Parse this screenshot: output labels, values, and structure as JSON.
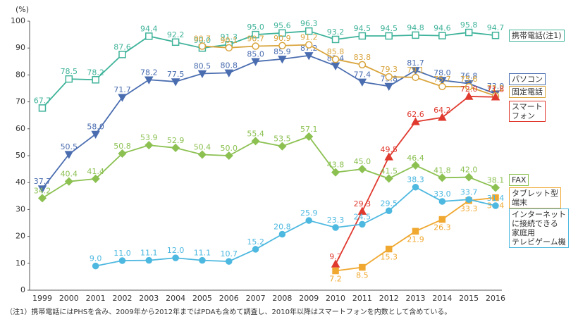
{
  "chart_data": {
    "type": "line",
    "y_label": "(%)",
    "note": "（注1）携帯電話にはPHSを含み、2009年から2012年まではPDAも含めて調査し、2010年以降はスマートフォンを内数として含めている。",
    "categories": [
      "1999",
      "2000",
      "2001",
      "2002",
      "2003",
      "2004",
      "2005",
      "2006",
      "2007",
      "2008",
      "2009",
      "2010",
      "2011",
      "2012",
      "2013",
      "2014",
      "2015",
      "2016"
    ],
    "ylim": [
      0,
      100
    ],
    "yticks": [
      0,
      10,
      20,
      30,
      40,
      50,
      60,
      70,
      80,
      90,
      100
    ],
    "grid": false,
    "series": [
      {
        "name": "携帯電話(注1)",
        "color": "#3fb39a",
        "values": [
          67.7,
          78.5,
          78.2,
          87.6,
          94.4,
          92.2,
          90.0,
          91.3,
          95.0,
          95.6,
          96.3,
          93.2,
          94.5,
          94.5,
          94.8,
          94.6,
          95.8,
          94.7
        ],
        "value_labels": [
          "67.7",
          "78.5",
          "78.2",
          "87.6",
          "94.4",
          "92.2",
          "90.0",
          "91.3",
          "95.0",
          "95.6",
          "96.3",
          "93.2",
          "94.5",
          "94.5",
          "94.8",
          "94.6",
          "95.8",
          "94.7"
        ]
      },
      {
        "name": "パソコン",
        "color": "#4a6db0",
        "values": [
          37.7,
          50.5,
          58.0,
          71.7,
          78.2,
          77.5,
          80.5,
          80.8,
          85.0,
          85.9,
          87.2,
          83.4,
          77.4,
          75.8,
          81.7,
          78.0,
          76.8,
          73.0
        ],
        "value_labels": [
          "37.7",
          "50.5",
          "58.0",
          "71.7",
          "78.2",
          "77.5",
          "80.5",
          "80.8",
          "85.0",
          "85.9",
          "87.2",
          "83.4",
          "77.4",
          "75.8",
          "81.7",
          "78.0",
          "76.8",
          "73.0"
        ]
      },
      {
        "name": "固定電話",
        "color": "#d9a43c",
        "values": [
          null,
          null,
          null,
          null,
          null,
          null,
          90.7,
          90.1,
          90.7,
          90.9,
          91.2,
          85.8,
          83.8,
          79.3,
          79.1,
          75.7,
          75.6,
          72.2
        ],
        "value_labels": [
          null,
          null,
          null,
          null,
          null,
          null,
          "90.7",
          "90.1",
          "90.7",
          "90.9",
          "91.2",
          "85.8",
          "83.8",
          "79.3",
          "79.1",
          "75.7",
          "75.6",
          "72.2"
        ]
      },
      {
        "name": "スマート\nフォン",
        "color": "#e03a2f",
        "values": [
          null,
          null,
          null,
          null,
          null,
          null,
          null,
          null,
          null,
          null,
          null,
          9.7,
          29.3,
          49.5,
          62.6,
          64.2,
          72.0,
          71.8
        ],
        "value_labels": [
          null,
          null,
          null,
          null,
          null,
          null,
          null,
          null,
          null,
          null,
          null,
          "9.7",
          "29.3",
          "49.5",
          "62.6",
          "64.2",
          "72.0",
          "71.8"
        ]
      },
      {
        "name": "FAX",
        "color": "#8cc152",
        "values": [
          34.2,
          40.4,
          41.4,
          50.8,
          53.9,
          52.9,
          50.4,
          50.0,
          55.4,
          53.5,
          57.1,
          43.8,
          45.0,
          41.5,
          46.4,
          41.8,
          42.0,
          38.1
        ],
        "value_labels": [
          "34.2",
          "40.4",
          "41.4",
          "50.8",
          "53.9",
          "52.9",
          "50.4",
          "50.0",
          "55.4",
          "53.5",
          "57.1",
          "43.8",
          "45.0",
          "41.5",
          "46.4",
          "41.8",
          "42.0",
          "38.1"
        ]
      },
      {
        "name": "タブレット型\n端末",
        "color": "#f0a830",
        "values": [
          null,
          null,
          null,
          null,
          null,
          null,
          null,
          null,
          null,
          null,
          null,
          7.2,
          8.5,
          15.3,
          21.9,
          26.3,
          33.3,
          34.4
        ],
        "value_labels": [
          null,
          null,
          null,
          null,
          null,
          null,
          null,
          null,
          null,
          null,
          null,
          "7.2",
          "8.5",
          "15.3",
          "21.9",
          "26.3",
          "33.3",
          "34.4"
        ]
      },
      {
        "name": "インターネット\nに接続できる\n家庭用\nテレビゲーム機",
        "color": "#4db8e0",
        "values": [
          null,
          null,
          9.0,
          11.0,
          11.1,
          12.0,
          11.1,
          10.7,
          15.2,
          20.8,
          25.9,
          23.3,
          24.5,
          29.5,
          38.3,
          33.0,
          33.7,
          31.4
        ],
        "value_labels": [
          null,
          null,
          "9.0",
          "11.0",
          "11.1",
          "12.0",
          "11.1",
          "10.7",
          "15.2",
          "20.8",
          "25.9",
          "23.3",
          "24.5",
          "29.5",
          "38.3",
          "33.0",
          "33.7",
          "31.4"
        ]
      }
    ]
  }
}
